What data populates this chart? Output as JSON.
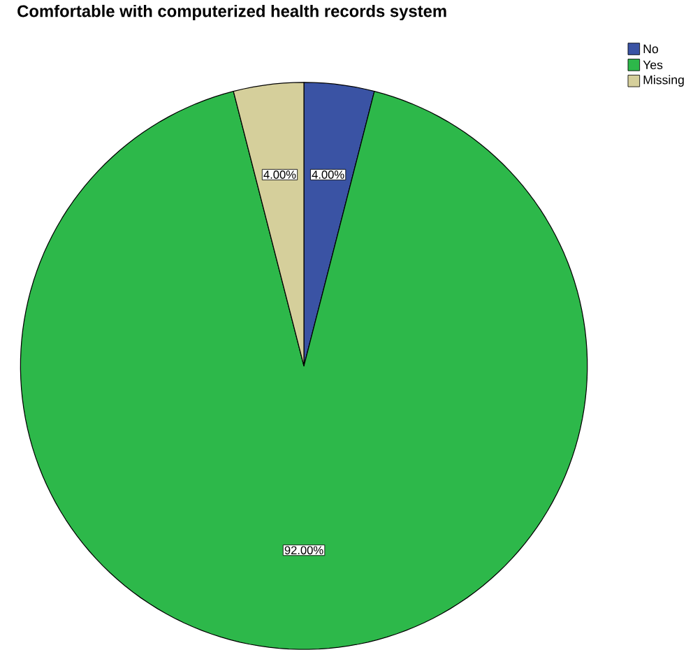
{
  "chart_data": {
    "type": "pie",
    "title": "Comfortable with computerized health records system",
    "categories": [
      "No",
      "Yes",
      "Missing"
    ],
    "values": [
      4,
      92,
      4
    ],
    "colors": [
      "#3a53a4",
      "#2db84a",
      "#d5cf9b"
    ],
    "value_labels": [
      "4.00%",
      "92.00%",
      "4.00%"
    ],
    "legend": "top right"
  }
}
